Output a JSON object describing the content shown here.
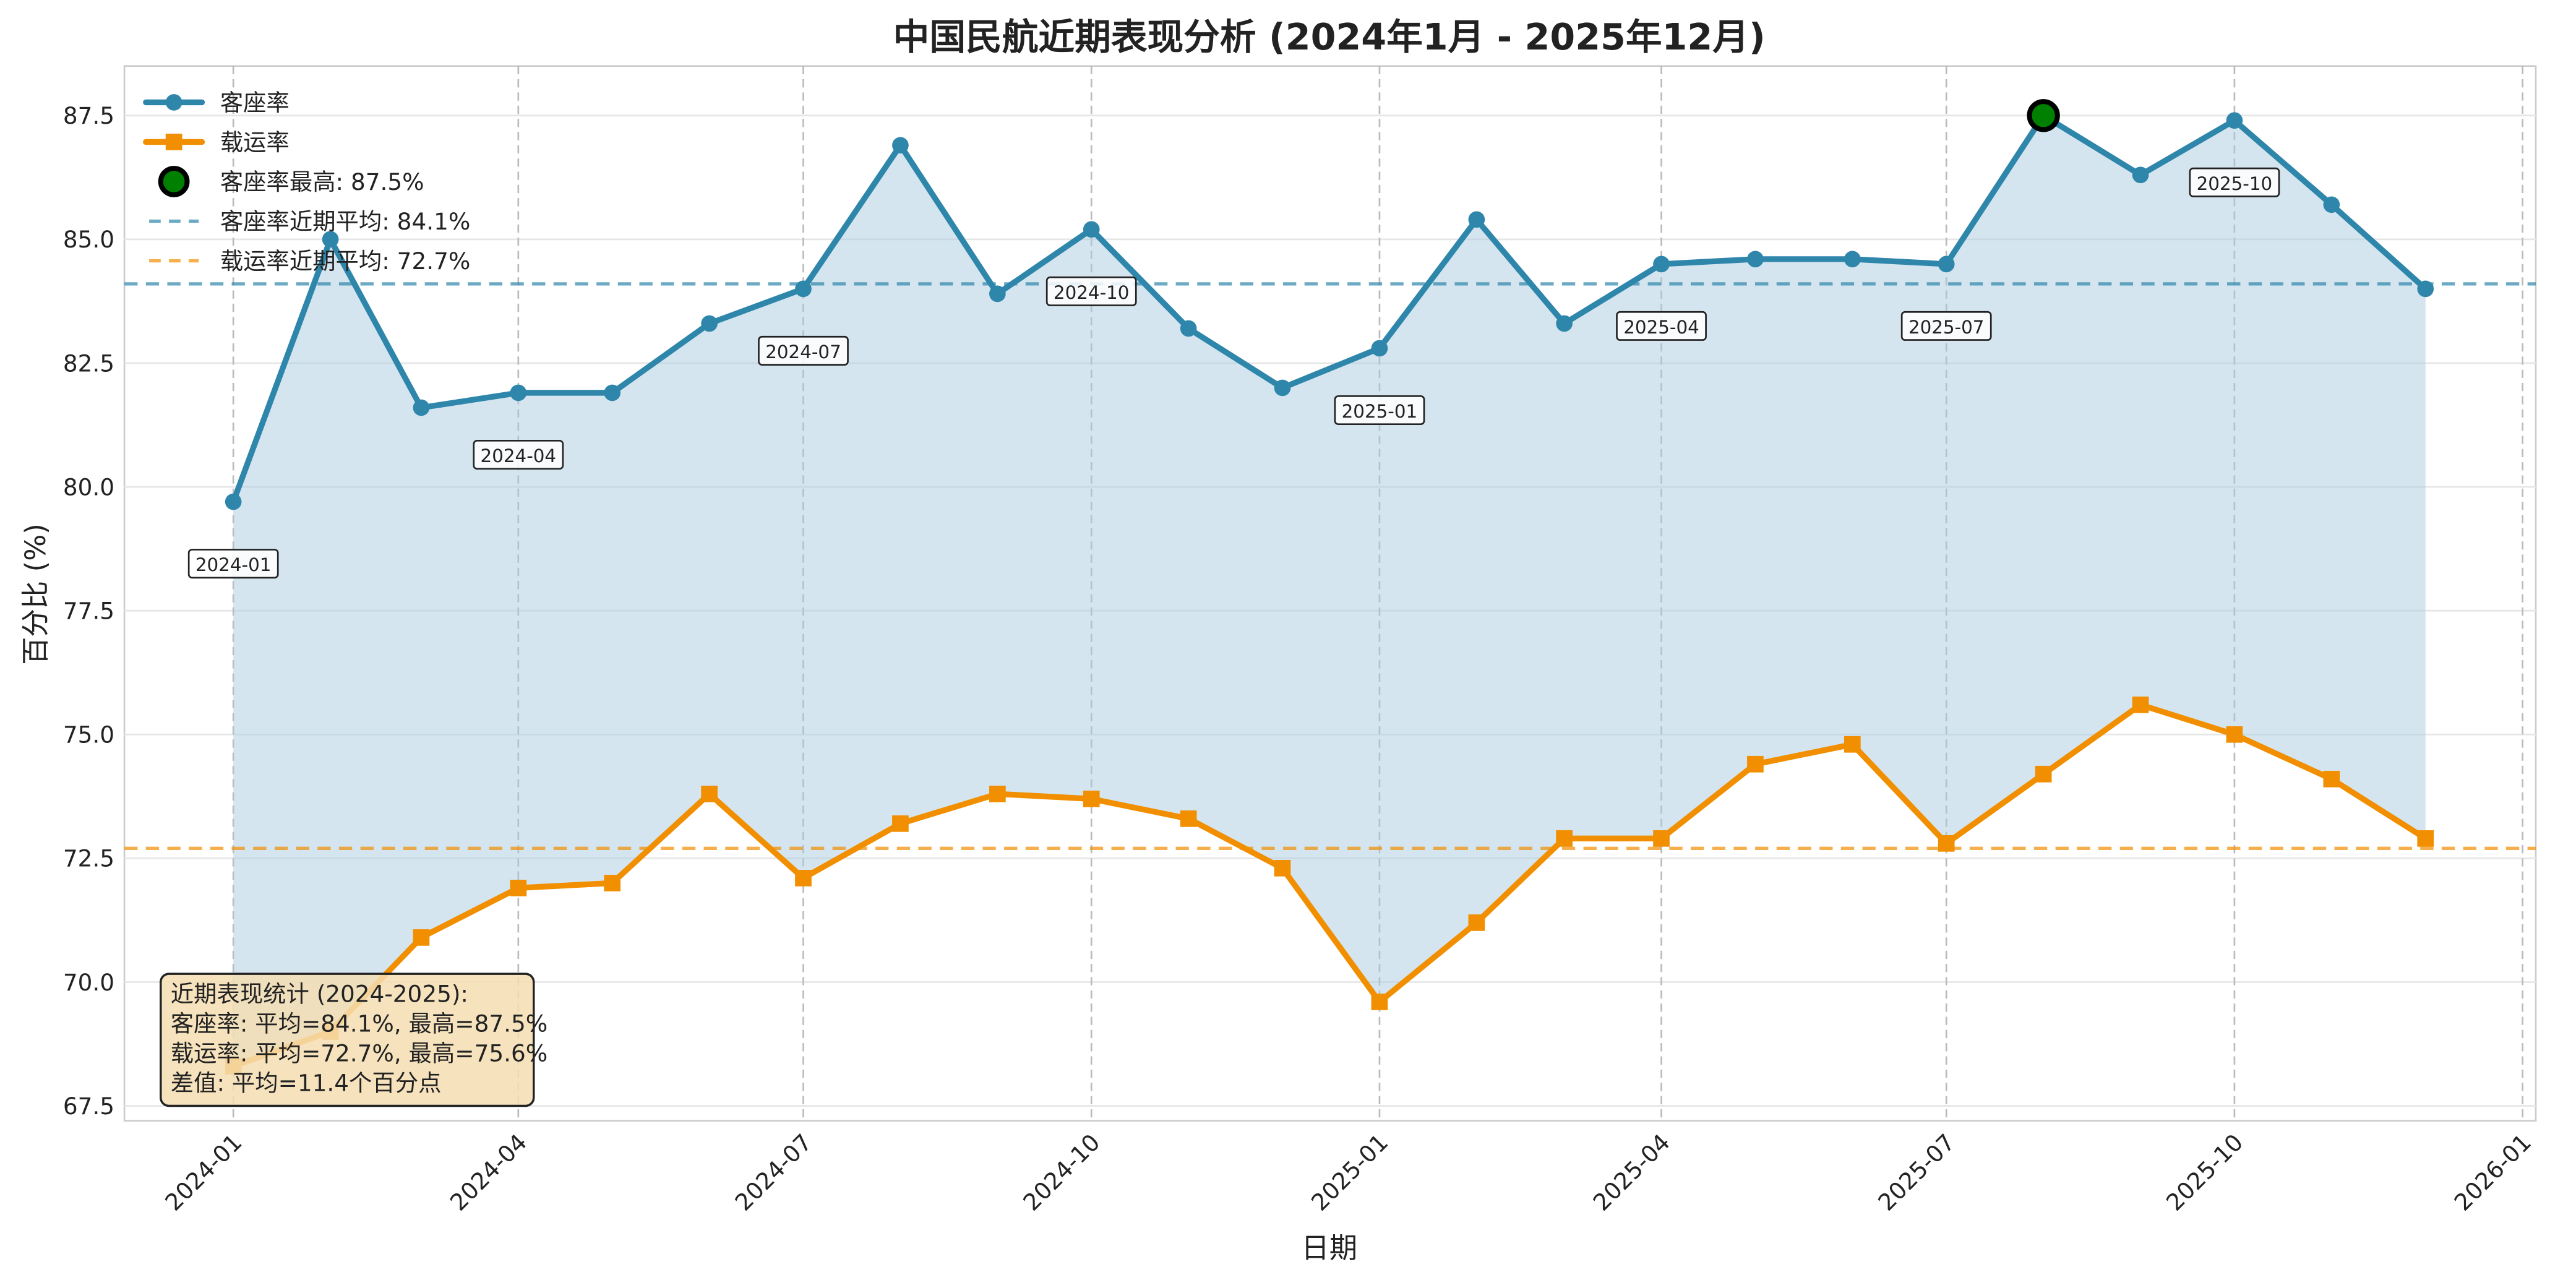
{
  "chart_data": {
    "type": "line",
    "title": "中国民航近期表现分析 (2024年1月 - 2025年12月)",
    "xlabel": "日期",
    "ylabel": "百分比 (%)",
    "ylim": [
      67.2,
      88.5
    ],
    "yticks": [
      "67.5",
      "70.0",
      "72.5",
      "75.0",
      "77.5",
      "80.0",
      "82.5",
      "85.0",
      "87.5"
    ],
    "xticks": [
      "2024-01",
      "2024-04",
      "2024-07",
      "2024-10",
      "2025-01",
      "2025-04",
      "2025-07",
      "2025-10",
      "2026-01"
    ],
    "grid": true,
    "legend_position": "top-left",
    "x": [
      "2024-01",
      "2024-02",
      "2024-03",
      "2024-04",
      "2024-05",
      "2024-06",
      "2024-07",
      "2024-08",
      "2024-09",
      "2024-10",
      "2024-11",
      "2024-12",
      "2025-01",
      "2025-02",
      "2025-03",
      "2025-04",
      "2025-05",
      "2025-06",
      "2025-07",
      "2025-08",
      "2025-09",
      "2025-10",
      "2025-11",
      "2025-12"
    ],
    "series": [
      {
        "name": "客座率",
        "color": "#2e86ab",
        "marker": "circle",
        "values": [
          79.7,
          85.0,
          81.6,
          81.9,
          81.9,
          83.3,
          84.0,
          86.9,
          83.9,
          85.2,
          83.2,
          82.0,
          82.8,
          85.4,
          83.3,
          84.5,
          84.6,
          84.6,
          84.5,
          87.5,
          86.3,
          87.4,
          85.7,
          84.0
        ]
      },
      {
        "name": "载运率",
        "color": "#f18f01",
        "marker": "square",
        "values": [
          68.3,
          69.0,
          70.9,
          71.9,
          72.0,
          73.8,
          72.1,
          73.2,
          73.8,
          73.7,
          73.3,
          72.3,
          69.6,
          71.2,
          72.9,
          72.9,
          74.4,
          74.8,
          72.8,
          74.2,
          75.6,
          75.0,
          74.1,
          72.9
        ]
      }
    ],
    "highlight": {
      "label": "客座率最高: 87.5%",
      "x": "2025-08",
      "value": 87.5,
      "color": "#008000"
    },
    "averages": [
      {
        "label": "客座率近期平均: 84.1%",
        "value": 84.1,
        "color": "#2e86ab"
      },
      {
        "label": "载运率近期平均: 72.7%",
        "value": 72.7,
        "color": "#f18f01"
      }
    ],
    "point_annotations": [
      {
        "x": "2024-01",
        "text": "2024-01"
      },
      {
        "x": "2024-04",
        "text": "2024-04"
      },
      {
        "x": "2024-07",
        "text": "2024-07"
      },
      {
        "x": "2024-10",
        "text": "2024-10"
      },
      {
        "x": "2025-01",
        "text": "2025-01"
      },
      {
        "x": "2025-04",
        "text": "2025-04"
      },
      {
        "x": "2025-07",
        "text": "2025-07"
      },
      {
        "x": "2025-10",
        "text": "2025-10"
      }
    ],
    "stats_box": [
      "近期表现统计 (2024-2025):",
      "客座率: 平均=84.1%, 最高=87.5%",
      "载运率: 平均=72.7%, 最高=75.6%",
      "差值: 平均=11.4个百分点"
    ]
  }
}
